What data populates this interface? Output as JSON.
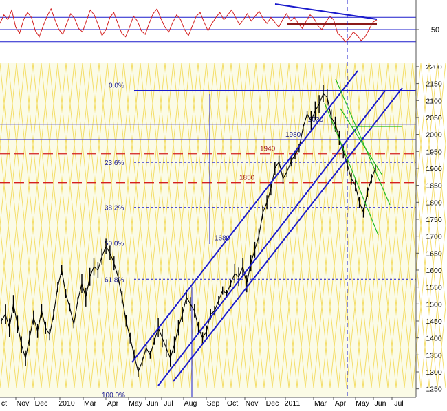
{
  "chart_data": [
    {
      "type": "line",
      "panel": "oscillator",
      "y_tick_labels": [
        "50"
      ],
      "reference_levels": [
        40,
        50,
        60
      ],
      "ylim": [
        28,
        72
      ],
      "series": [
        {
          "values": [
            55,
            62,
            58,
            66,
            52,
            47,
            58,
            64,
            60,
            49,
            44,
            53,
            61,
            67,
            58,
            50,
            46,
            55,
            63,
            59,
            51,
            48,
            57,
            66,
            62,
            54,
            45,
            50,
            60,
            64,
            55,
            47,
            44,
            52,
            61,
            57,
            49,
            46,
            55,
            63,
            67,
            59,
            52,
            48,
            56,
            62,
            58,
            50,
            45,
            53,
            61,
            64,
            56,
            49,
            55,
            60,
            64,
            58,
            62,
            66,
            60,
            54,
            58,
            63,
            57,
            61,
            65,
            59,
            55,
            60,
            56,
            52,
            58,
            63,
            57,
            60,
            55,
            51,
            57,
            62,
            59,
            53,
            50,
            56,
            61,
            58,
            47,
            44,
            40,
            43,
            48,
            45,
            41,
            44,
            50,
            56,
            58
          ]
        }
      ],
      "colors": {
        "series": "#d42020",
        "levels": "#1a1acc",
        "divergence_line": "#1a1acc",
        "resistance_line": "#8b1a1a"
      }
    },
    {
      "type": "line",
      "panel": "price",
      "x_tick_labels": [
        "ct",
        "Nov",
        "Dec",
        "2010",
        "Mar",
        "Apr",
        "May",
        "Jun",
        "Jul",
        "Aug",
        "Sep",
        "Oct",
        "Nov",
        "Dec",
        "2011",
        "Mar",
        "Apr",
        "May",
        "Jun",
        "Jul"
      ],
      "y_tick_labels": [
        "2200",
        "2150",
        "2100",
        "2050",
        "2000",
        "1950",
        "1900",
        "1850",
        "1800",
        "1750",
        "1700",
        "1650",
        "1600",
        "1550",
        "1500",
        "1450",
        "1400",
        "1350",
        "1300",
        "1250"
      ],
      "ylim": [
        1225,
        2210
      ],
      "horizontal_levels": [
        {
          "label": "0.0%",
          "value": 2130,
          "style": "solid"
        },
        {
          "label": "2030",
          "value": 2030,
          "style": "solid"
        },
        {
          "label": "1980",
          "value": 1985,
          "style": "solid"
        },
        {
          "label": "1940",
          "value": 1943,
          "style": "dashed-red"
        },
        {
          "label": "23.6%",
          "value": 1918,
          "style": "dotted"
        },
        {
          "label": "1850",
          "value": 1858,
          "style": "dashed-red"
        },
        {
          "label": "38.2%",
          "value": 1785,
          "style": "dotted"
        },
        {
          "label": "1680",
          "value": 1680,
          "style": "solid"
        },
        {
          "label": "50.0%",
          "value": 1680,
          "style": "solid"
        },
        {
          "label": "61.8%",
          "value": 1573,
          "style": "dotted"
        },
        {
          "label": "100.0%",
          "value": 1225,
          "style": "solid"
        }
      ],
      "series": [
        {
          "values": [
            1450,
            1470,
            1430,
            1500,
            1440,
            1380,
            1340,
            1400,
            1460,
            1420,
            1480,
            1430,
            1410,
            1470,
            1550,
            1600,
            1530,
            1490,
            1440,
            1510,
            1560,
            1520,
            1580,
            1610,
            1600,
            1640,
            1670,
            1650,
            1620,
            1580,
            1520,
            1450,
            1400,
            1350,
            1300,
            1330,
            1370,
            1350,
            1390,
            1430,
            1400,
            1370,
            1340,
            1380,
            1430,
            1470,
            1520,
            1500,
            1480,
            1430,
            1400,
            1420,
            1470,
            1480,
            1510,
            1540,
            1530,
            1560,
            1590,
            1580,
            1610,
            1560,
            1620,
            1660,
            1700,
            1770,
            1800,
            1840,
            1900,
            1920,
            1870,
            1890,
            1920,
            1940,
            1960,
            2020,
            2060,
            2040,
            2070,
            2090,
            2120,
            2110,
            2050,
            2030,
            1990,
            1950,
            1910,
            1870,
            1850,
            1800,
            1770,
            1830,
            1870,
            1900
          ]
        }
      ],
      "colors": {
        "price": "#000000",
        "channels": "#1a1acc",
        "falling_channel": "#22bb22",
        "levels": "#1a1acc",
        "key_levels": "#d42020",
        "background_cycles": "#f0d030"
      }
    }
  ]
}
